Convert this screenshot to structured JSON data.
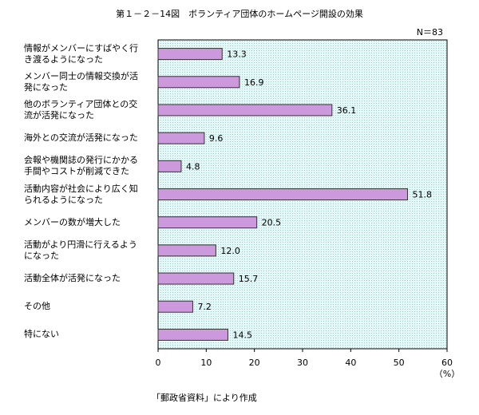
{
  "chart_data": {
    "type": "bar",
    "orientation": "horizontal",
    "title": "第１－２－14図　ボランティア団体のホームページ開設の効果",
    "note": "N＝83",
    "x_unit": "（%）",
    "source": "「郵政省資料」により作成",
    "categories": [
      "情報がメンバーにすばやく行\nき渡るようになった",
      "メンバー同士の情報交換が活\n発になった",
      "他のボランティア団体との交\n流が活発になった",
      "海外との交流が活発になった",
      "会報や機関誌の発行にかかる\n手間やコストが削減できた",
      "活動内容が社会により広く知\nられるようになった",
      "メンバーの数が増大した",
      "活動がより円滑に行えるよう\nになった",
      "活動全体が活発になった",
      "その他",
      "特にない"
    ],
    "values": [
      13.3,
      16.9,
      36.1,
      9.6,
      4.8,
      51.8,
      20.5,
      12.0,
      15.7,
      7.2,
      14.5
    ],
    "value_labels": [
      "13.3",
      "16.9",
      "36.1",
      "9.6",
      "4.8",
      "51.8",
      "20.5",
      "12.0",
      "15.7",
      "7.2",
      "14.5"
    ],
    "color": "#cc99dd",
    "xlim": [
      0,
      60
    ],
    "xticks": [
      0,
      10,
      20,
      30,
      40,
      50,
      60
    ],
    "grid": false
  }
}
